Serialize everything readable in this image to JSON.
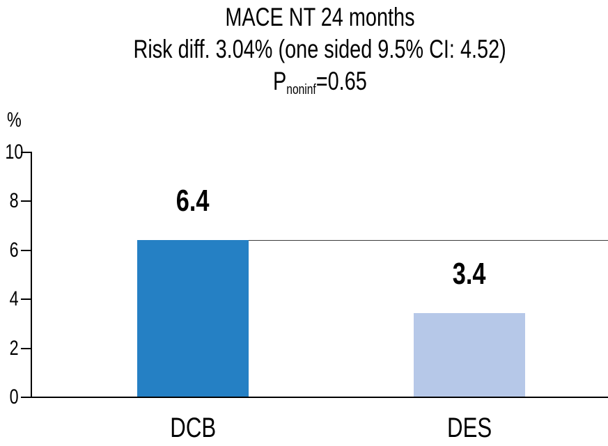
{
  "chart_data": {
    "type": "bar",
    "title": "MACE NT 24 months",
    "subtitle": "Risk diff. 3.04% (one sided 9.5% CI: 4.52)",
    "p_annotation": {
      "base": "P",
      "sub": "noninf",
      "rest": "=0.65"
    },
    "ylabel": "%",
    "xlabel": "",
    "ylim": [
      0,
      10
    ],
    "yticks": [
      0,
      2,
      4,
      6,
      8,
      10
    ],
    "categories": [
      "DCB",
      "DES"
    ],
    "values": [
      6.4,
      3.4
    ],
    "value_labels": [
      "6.4",
      "3.4"
    ],
    "bar_colors": [
      "#2580c4",
      "#b6c8e8"
    ],
    "axis_color": "#000000",
    "reference_line_value": 6.4,
    "grid": false,
    "legend": "none"
  }
}
